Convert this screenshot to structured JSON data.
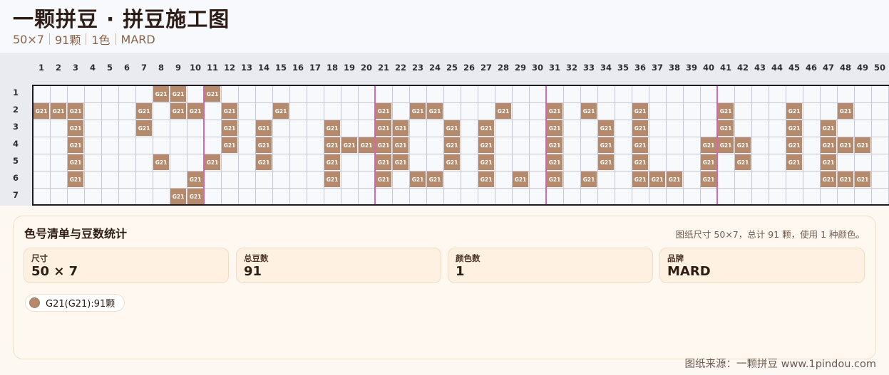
{
  "header": {
    "title": "一颗拼豆 · 拼豆施工图",
    "meta": [
      "50×7",
      "91颗",
      "1色",
      "MARD"
    ]
  },
  "grid": {
    "columns": 50,
    "rows": 7,
    "column_labels": [
      "1",
      "2",
      "3",
      "4",
      "5",
      "6",
      "7",
      "8",
      "9",
      "10",
      "11",
      "12",
      "13",
      "14",
      "15",
      "16",
      "17",
      "18",
      "19",
      "20",
      "21",
      "22",
      "23",
      "24",
      "25",
      "26",
      "27",
      "28",
      "29",
      "30",
      "31",
      "32",
      "33",
      "34",
      "35",
      "36",
      "37",
      "38",
      "39",
      "40",
      "41",
      "42",
      "43",
      "44",
      "45",
      "46",
      "47",
      "48",
      "49",
      "50"
    ],
    "row_labels": [
      "1",
      "2",
      "3",
      "4",
      "5",
      "6",
      "7"
    ],
    "major_line_every": 10,
    "bead_color": "#b5896a",
    "major_line_color": "#d867b0",
    "cell_code": "G21",
    "filled": [
      [
        8,
        9,
        11
      ],
      [
        1,
        2,
        3,
        7,
        9,
        10,
        12,
        15,
        21,
        23,
        24,
        28,
        31,
        33,
        36,
        41,
        45,
        48
      ],
      [
        3,
        7,
        12,
        14,
        18,
        21,
        22,
        25,
        27,
        31,
        34,
        36,
        41,
        45,
        47
      ],
      [
        3,
        12,
        14,
        18,
        19,
        20,
        21,
        22,
        25,
        27,
        31,
        34,
        36,
        40,
        41,
        42,
        45,
        47,
        48,
        49
      ],
      [
        3,
        8,
        11,
        14,
        18,
        21,
        22,
        25,
        27,
        31,
        34,
        36,
        40,
        42,
        45,
        47
      ],
      [
        3,
        10,
        18,
        21,
        23,
        24,
        27,
        29,
        31,
        33,
        36,
        37,
        38,
        40,
        47,
        48,
        49
      ],
      [
        9,
        10
      ]
    ]
  },
  "summary": {
    "title": "色号清单与豆数统计",
    "text": "图纸尺寸 50×7，总计 91 颗，使用 1 种颜色。",
    "stats": [
      {
        "label": "尺寸",
        "value": "50 × 7"
      },
      {
        "label": "总豆数",
        "value": "91"
      },
      {
        "label": "颜色数",
        "value": "1"
      },
      {
        "label": "品牌",
        "value": "MARD"
      }
    ],
    "colors": [
      {
        "label": "G21(G21):91颗",
        "swatch": "#b5896a"
      }
    ]
  },
  "footer": "图纸来源：一颗拼豆 www.1pindou.com"
}
